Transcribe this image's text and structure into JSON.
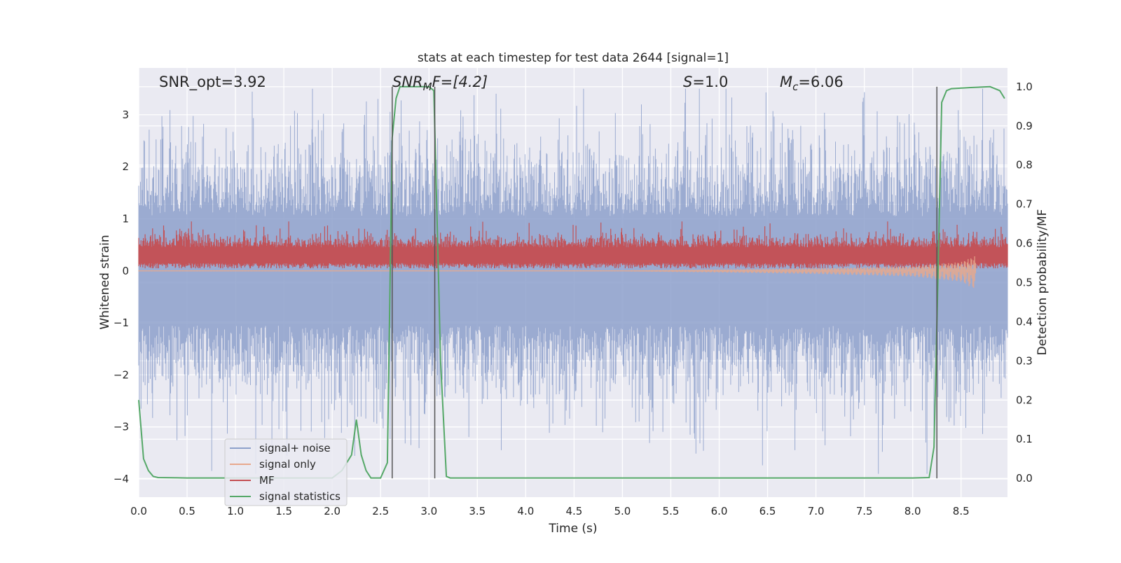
{
  "chart_data": {
    "type": "line",
    "title": "stats at each timestep for test data 2644 [signal=1]",
    "xlabel": "Time (s)",
    "ylabel": "Whitened strain",
    "y2label": "Detection probability/MF",
    "xlim": [
      0.0,
      8.98
    ],
    "ylim": [
      -4.35,
      3.9
    ],
    "y2lim": [
      -0.048,
      1.048
    ],
    "xticks": [
      "0.0",
      "0.5",
      "1.0",
      "1.5",
      "2.0",
      "2.5",
      "3.0",
      "3.5",
      "4.0",
      "4.5",
      "5.0",
      "5.5",
      "6.0",
      "6.5",
      "7.0",
      "7.5",
      "8.0",
      "8.5"
    ],
    "yticks": [
      "3",
      "2",
      "1",
      "0",
      "−1",
      "−2",
      "−3",
      "−4"
    ],
    "y2ticks": [
      "1.0",
      "0.9",
      "0.8",
      "0.7",
      "0.6",
      "0.5",
      "0.4",
      "0.3",
      "0.2",
      "0.1",
      "0.0"
    ],
    "grid": true,
    "legend_position": "lower-left",
    "annotations": {
      "snr_opt": "SNR_opt=3.92",
      "snr_mf_base": "SNR",
      "snr_mf_sub": "M",
      "snr_mf_rest": "F=[4.2]",
      "s_base": "S",
      "s_rest": "=1.0",
      "mc_base": "M",
      "mc_sub": "c",
      "mc_rest": "=6.06"
    },
    "vertical_lines_x": [
      2.62,
      3.06,
      8.25
    ],
    "series": [
      {
        "name": "signal+ noise",
        "color": "#8da0cb",
        "axis": "left",
        "description_values": "noise envelope approx ±1.8 with peaks to ±3.5"
      },
      {
        "name": "signal only",
        "color": "#e8a88c",
        "axis": "left",
        "x": [
          0.0,
          5.0,
          6.0,
          7.0,
          8.0,
          8.5,
          8.65
        ],
        "y": [
          0.0,
          0.0,
          -0.02,
          -0.05,
          -0.1,
          -0.2,
          -0.35
        ]
      },
      {
        "name": "MF",
        "color": "#c44e52",
        "axis": "left",
        "baseline": 0.25,
        "range": [
          0.05,
          0.95
        ]
      },
      {
        "name": "signal statistics",
        "color": "#55a868",
        "axis": "right",
        "x": [
          0.0,
          0.05,
          0.1,
          0.15,
          0.2,
          0.5,
          1.0,
          1.5,
          2.0,
          2.1,
          2.2,
          2.25,
          2.3,
          2.35,
          2.4,
          2.45,
          2.5,
          2.57,
          2.62,
          2.66,
          2.7,
          2.8,
          2.9,
          3.0,
          3.05,
          3.08,
          3.12,
          3.18,
          3.22,
          3.3,
          4.0,
          5.0,
          6.0,
          7.0,
          8.0,
          8.17,
          8.22,
          8.26,
          8.3,
          8.35,
          8.4,
          8.6,
          8.8,
          8.9,
          8.95
        ],
        "y": [
          0.2,
          0.05,
          0.02,
          0.005,
          0.002,
          0.001,
          0.001,
          0.001,
          0.001,
          0.02,
          0.06,
          0.15,
          0.06,
          0.02,
          0.001,
          0.001,
          0.001,
          0.04,
          0.87,
          0.97,
          1.0,
          1.0,
          1.0,
          1.0,
          0.99,
          0.7,
          0.3,
          0.005,
          0.001,
          0.001,
          0.001,
          0.001,
          0.001,
          0.001,
          0.001,
          0.002,
          0.08,
          0.5,
          0.96,
          0.99,
          0.995,
          0.998,
          1.0,
          0.99,
          0.97
        ]
      }
    ]
  }
}
